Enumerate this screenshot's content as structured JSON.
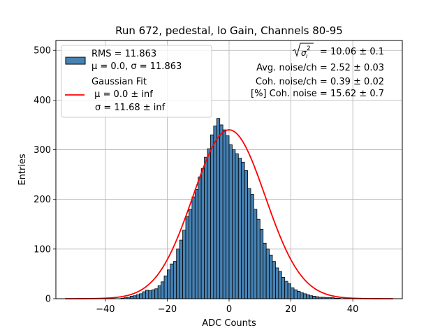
{
  "chart_data": {
    "type": "bar",
    "title": "Run 672, pedestal, lo Gain, Channels 80-95",
    "xlabel": "ADC Counts",
    "ylabel": "Entries",
    "xlim": [
      -56,
      56
    ],
    "ylim": [
      0,
      520
    ],
    "xticks": [
      -40,
      -20,
      0,
      20,
      40
    ],
    "yticks": [
      0,
      100,
      200,
      300,
      400,
      500
    ],
    "grid": true,
    "bin_width": 1,
    "histogram_color": "#4682b4",
    "fit_color": "#ff0000",
    "histogram": {
      "bin_start": -35,
      "counts": [
        1,
        2,
        3,
        5,
        6,
        8,
        10,
        14,
        17,
        16,
        18,
        20,
        26,
        34,
        46,
        58,
        70,
        75,
        100,
        118,
        138,
        165,
        180,
        205,
        220,
        245,
        262,
        285,
        302,
        330,
        348,
        363,
        350,
        340,
        328,
        310,
        300,
        292,
        283,
        275,
        258,
        222,
        210,
        180,
        160,
        140,
        112,
        100,
        88,
        75,
        62,
        55,
        43,
        35,
        30,
        22,
        18,
        15,
        12,
        10,
        8,
        6,
        5,
        4,
        3,
        3,
        2,
        2,
        2,
        1,
        1
      ]
    },
    "gaussian_fit": {
      "mu": 0.0,
      "sigma": 11.68,
      "amplitude": 340,
      "range": [
        -53,
        53
      ]
    },
    "legend": {
      "placement": "upper-left",
      "entries": [
        {
          "kind": "patch",
          "lines": [
            "RMS = 11.863",
            "μ = 0.0, σ = 11.863"
          ]
        },
        {
          "kind": "line",
          "lines": [
            "Gaussian Fit",
            " μ = 0.0 ± inf",
            "σ = 11.68 ± inf"
          ]
        }
      ]
    },
    "annotations": {
      "placement": "upper-right",
      "sigma_line": {
        "value": "= 10.06 ± 0.1"
      },
      "lines": [
        "Avg. noise/ch = 2.52 ± 0.03",
        "Coh. noise/ch = 0.39 ± 0.02",
        "[%] Coh. noise = 15.62 ± 0.7"
      ]
    }
  }
}
